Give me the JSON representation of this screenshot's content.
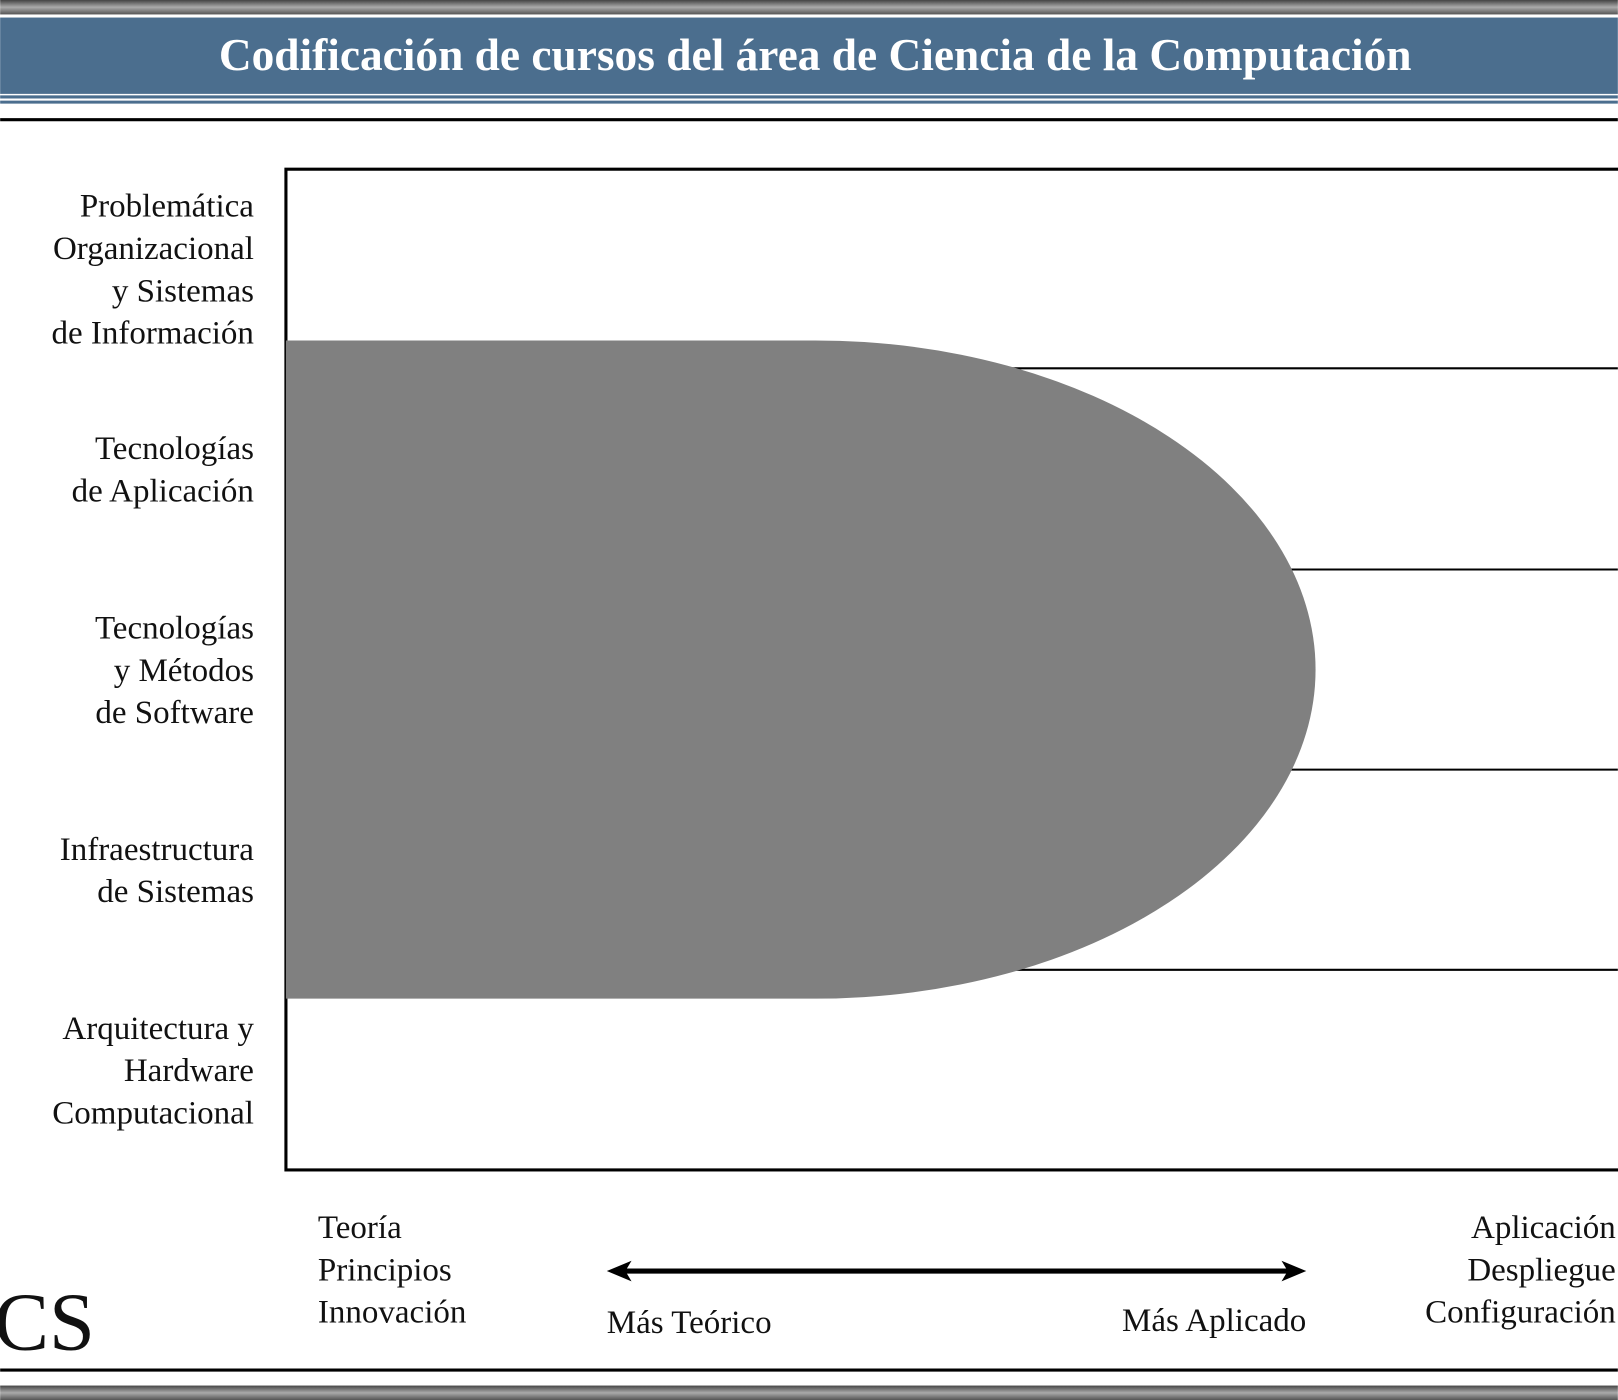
{
  "header": {
    "title": "Codificación de cursos del área de Ciencia de la Computación"
  },
  "rows": [
    {
      "label": [
        "Problemática",
        "Organizacional",
        "y Sistemas",
        "de Información"
      ]
    },
    {
      "label": [
        "Tecnologías",
        "de Aplicación"
      ]
    },
    {
      "label": [
        "Tecnologías",
        "y Métodos",
        "de Software"
      ]
    },
    {
      "label": [
        "Infraestructura",
        "de Sistemas"
      ]
    },
    {
      "label": [
        "Arquitectura y",
        "Hardware",
        "Computacional"
      ]
    }
  ],
  "axis": {
    "left": [
      "Teoría",
      "Principios",
      "Innovación"
    ],
    "right": [
      "Aplicación",
      "Despliegue",
      "Configuración"
    ],
    "arrow_left": "Más Teórico",
    "arrow_right": "Más Aplicado"
  },
  "logo": "CS"
}
